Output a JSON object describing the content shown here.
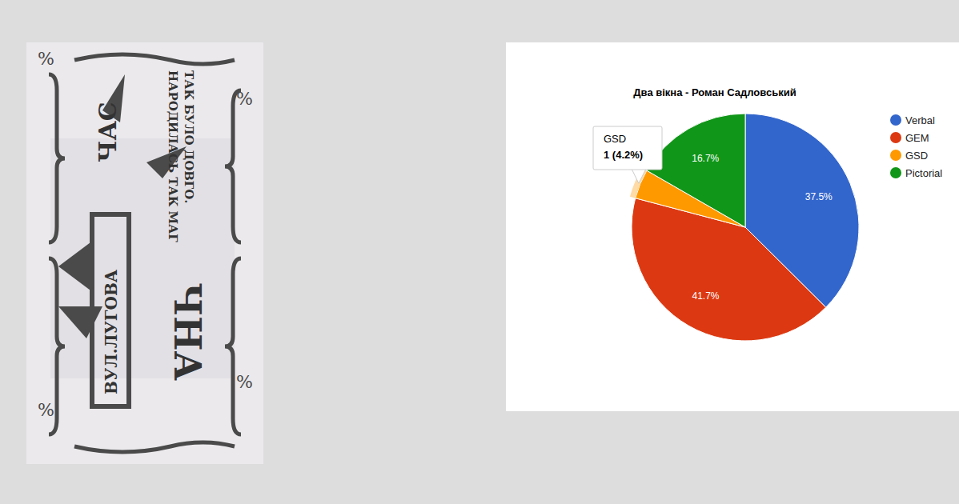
{
  "chart_data": {
    "type": "pie",
    "title": "Два вікна - Роман Садловський",
    "categories": [
      "Verbal",
      "GEM",
      "GSD",
      "Pictorial"
    ],
    "values": [
      37.5,
      41.7,
      4.2,
      16.7
    ],
    "value_labels": [
      "37.5%",
      "41.7%",
      null,
      "16.7%"
    ],
    "colors": [
      "#3366cc",
      "#dc3912",
      "#ff9900",
      "#109618"
    ],
    "data_labels": true,
    "legend": "right",
    "annotations": [
      {
        "category": "GSD",
        "text": "1 (4.2%)"
      }
    ]
  },
  "image": {
    "texts": [
      "ТАК БУЛО ДОВГО.",
      "НАРОДИЛАСЬ ТАК МАГ",
      "ЧАС",
      "ВУЛ.ЛУГОВА",
      "ЧНА"
    ],
    "ornament": "%"
  }
}
